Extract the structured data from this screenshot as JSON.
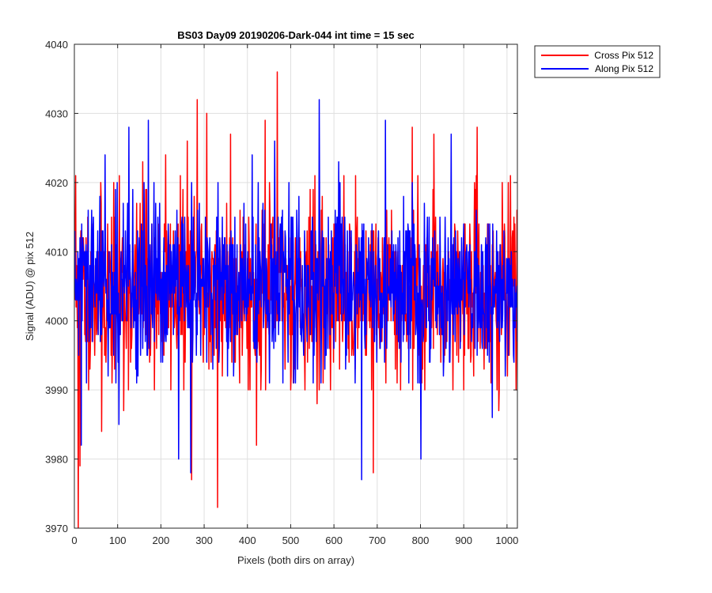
{
  "chart_data": {
    "type": "line",
    "title": "BS03 Day09 20190206-Dark-044 int time = 15 sec",
    "xlabel": "Pixels (both dirs on array)",
    "ylabel": "Signal (ADU) @ pix 512",
    "xlim": [
      0,
      1024
    ],
    "ylim": [
      3970,
      4040
    ],
    "xticks": [
      0,
      100,
      200,
      300,
      400,
      500,
      600,
      700,
      800,
      900,
      1000
    ],
    "yticks": [
      3970,
      3980,
      3990,
      4000,
      4010,
      4020,
      4030,
      4040
    ],
    "grid": true,
    "legend_position": "outside-top-right",
    "n_points": 1024,
    "series": [
      {
        "name": "Cross Pix 512",
        "color": "#ff0000",
        "mean": 4004.5,
        "std": 6.5,
        "seed": 11,
        "extremes": [
          {
            "x": 2,
            "y": 4021
          },
          {
            "x": 8,
            "y": 3970
          },
          {
            "x": 12,
            "y": 3979
          },
          {
            "x": 62,
            "y": 3984
          },
          {
            "x": 113,
            "y": 3987
          },
          {
            "x": 157,
            "y": 4023
          },
          {
            "x": 210,
            "y": 4024
          },
          {
            "x": 260,
            "y": 4026
          },
          {
            "x": 270,
            "y": 3977
          },
          {
            "x": 283,
            "y": 4032
          },
          {
            "x": 305,
            "y": 4030
          },
          {
            "x": 330,
            "y": 3973
          },
          {
            "x": 360,
            "y": 4027
          },
          {
            "x": 420,
            "y": 3982
          },
          {
            "x": 440,
            "y": 4029
          },
          {
            "x": 468,
            "y": 4036
          },
          {
            "x": 560,
            "y": 3988
          },
          {
            "x": 690,
            "y": 3978
          },
          {
            "x": 780,
            "y": 4028
          },
          {
            "x": 830,
            "y": 4027
          },
          {
            "x": 930,
            "y": 4028
          },
          {
            "x": 980,
            "y": 3987
          },
          {
            "x": 1020,
            "y": 3990
          }
        ]
      },
      {
        "name": "Along Pix 512",
        "color": "#0000ff",
        "mean": 4004.8,
        "std": 6.0,
        "seed": 29,
        "extremes": [
          {
            "x": 15,
            "y": 3982
          },
          {
            "x": 70,
            "y": 4024
          },
          {
            "x": 102,
            "y": 3985
          },
          {
            "x": 125,
            "y": 4028
          },
          {
            "x": 170,
            "y": 4029
          },
          {
            "x": 240,
            "y": 3980
          },
          {
            "x": 268,
            "y": 3978
          },
          {
            "x": 410,
            "y": 4024
          },
          {
            "x": 462,
            "y": 4026
          },
          {
            "x": 565,
            "y": 4032
          },
          {
            "x": 610,
            "y": 4023
          },
          {
            "x": 663,
            "y": 3977
          },
          {
            "x": 718,
            "y": 4029
          },
          {
            "x": 800,
            "y": 3980
          },
          {
            "x": 870,
            "y": 4027
          },
          {
            "x": 965,
            "y": 3986
          }
        ]
      }
    ]
  }
}
